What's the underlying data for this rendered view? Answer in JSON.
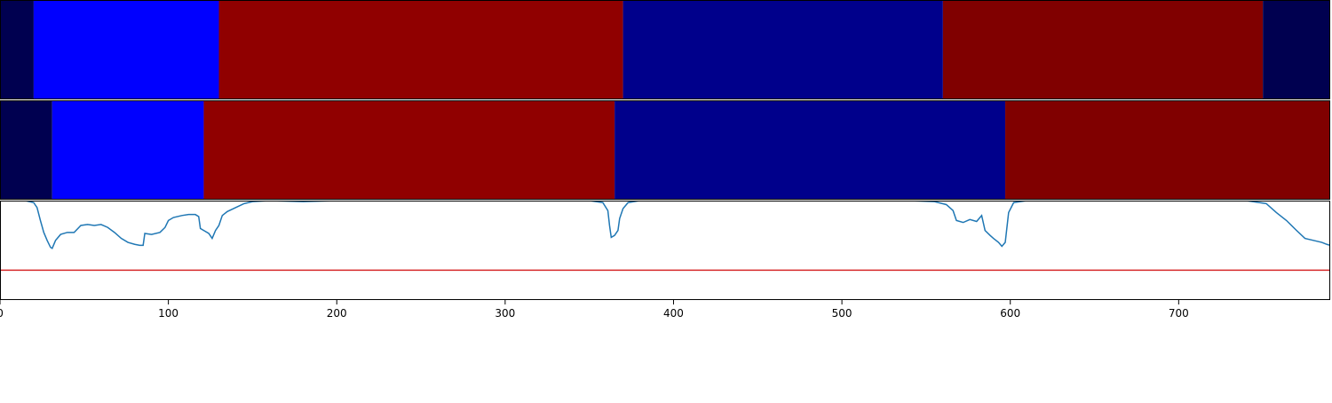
{
  "chart_data": {
    "type": "segmentation-strip-with-line",
    "x_range": [
      0,
      790
    ],
    "x_ticks": [
      0,
      100,
      200,
      300,
      400,
      500,
      600,
      700
    ],
    "tracks": [
      {
        "segments": [
          {
            "start": 0,
            "end": 20,
            "color": "#000050"
          },
          {
            "start": 20,
            "end": 130,
            "color": "#0000ff"
          },
          {
            "start": 130,
            "end": 370,
            "color": "#900000"
          },
          {
            "start": 370,
            "end": 560,
            "color": "#00008b"
          },
          {
            "start": 560,
            "end": 750,
            "color": "#800000"
          },
          {
            "start": 750,
            "end": 790,
            "color": "#000050"
          }
        ]
      },
      {
        "segments": [
          {
            "start": 0,
            "end": 31,
            "color": "#000050"
          },
          {
            "start": 31,
            "end": 121,
            "color": "#0000ff"
          },
          {
            "start": 121,
            "end": 365,
            "color": "#900000"
          },
          {
            "start": 365,
            "end": 597,
            "color": "#00008b"
          },
          {
            "start": 597,
            "end": 790,
            "color": "#800000"
          }
        ]
      }
    ],
    "line_panel": {
      "y_range": [
        0,
        1
      ],
      "threshold": 0.3,
      "threshold_color": "#d62728",
      "line_color": "#1f77b4",
      "points": [
        [
          0,
          1.0
        ],
        [
          15,
          1.0
        ],
        [
          20,
          0.98
        ],
        [
          22,
          0.93
        ],
        [
          24,
          0.8
        ],
        [
          26,
          0.68
        ],
        [
          28,
          0.6
        ],
        [
          30,
          0.53
        ],
        [
          31,
          0.52
        ],
        [
          33,
          0.6
        ],
        [
          36,
          0.66
        ],
        [
          40,
          0.68
        ],
        [
          44,
          0.68
        ],
        [
          48,
          0.75
        ],
        [
          52,
          0.76
        ],
        [
          56,
          0.75
        ],
        [
          60,
          0.76
        ],
        [
          64,
          0.73
        ],
        [
          68,
          0.68
        ],
        [
          72,
          0.62
        ],
        [
          76,
          0.58
        ],
        [
          80,
          0.56
        ],
        [
          83,
          0.55
        ],
        [
          85,
          0.55
        ],
        [
          86,
          0.67
        ],
        [
          90,
          0.66
        ],
        [
          95,
          0.68
        ],
        [
          98,
          0.73
        ],
        [
          100,
          0.8
        ],
        [
          103,
          0.83
        ],
        [
          108,
          0.85
        ],
        [
          112,
          0.86
        ],
        [
          116,
          0.86
        ],
        [
          118,
          0.84
        ],
        [
          119,
          0.72
        ],
        [
          121,
          0.7
        ],
        [
          124,
          0.67
        ],
        [
          126,
          0.62
        ],
        [
          128,
          0.7
        ],
        [
          130,
          0.75
        ],
        [
          132,
          0.85
        ],
        [
          135,
          0.89
        ],
        [
          140,
          0.93
        ],
        [
          145,
          0.97
        ],
        [
          150,
          0.99
        ],
        [
          160,
          1.0
        ],
        [
          180,
          0.99
        ],
        [
          200,
          1.0
        ],
        [
          300,
          1.0
        ],
        [
          350,
          1.0
        ],
        [
          358,
          0.98
        ],
        [
          361,
          0.9
        ],
        [
          362,
          0.75
        ],
        [
          363,
          0.63
        ],
        [
          365,
          0.65
        ],
        [
          367,
          0.7
        ],
        [
          368,
          0.82
        ],
        [
          370,
          0.92
        ],
        [
          373,
          0.98
        ],
        [
          380,
          1.0
        ],
        [
          500,
          1.0
        ],
        [
          540,
          1.0
        ],
        [
          555,
          0.99
        ],
        [
          562,
          0.96
        ],
        [
          566,
          0.9
        ],
        [
          568,
          0.8
        ],
        [
          572,
          0.78
        ],
        [
          576,
          0.81
        ],
        [
          580,
          0.79
        ],
        [
          583,
          0.85
        ],
        [
          585,
          0.7
        ],
        [
          588,
          0.65
        ],
        [
          590,
          0.62
        ],
        [
          593,
          0.58
        ],
        [
          595,
          0.54
        ],
        [
          597,
          0.58
        ],
        [
          599,
          0.88
        ],
        [
          602,
          0.98
        ],
        [
          610,
          1.0
        ],
        [
          740,
          1.0
        ],
        [
          752,
          0.97
        ],
        [
          758,
          0.88
        ],
        [
          764,
          0.8
        ],
        [
          770,
          0.7
        ],
        [
          775,
          0.62
        ],
        [
          780,
          0.6
        ],
        [
          785,
          0.58
        ],
        [
          788,
          0.56
        ],
        [
          790,
          0.55
        ]
      ]
    }
  }
}
